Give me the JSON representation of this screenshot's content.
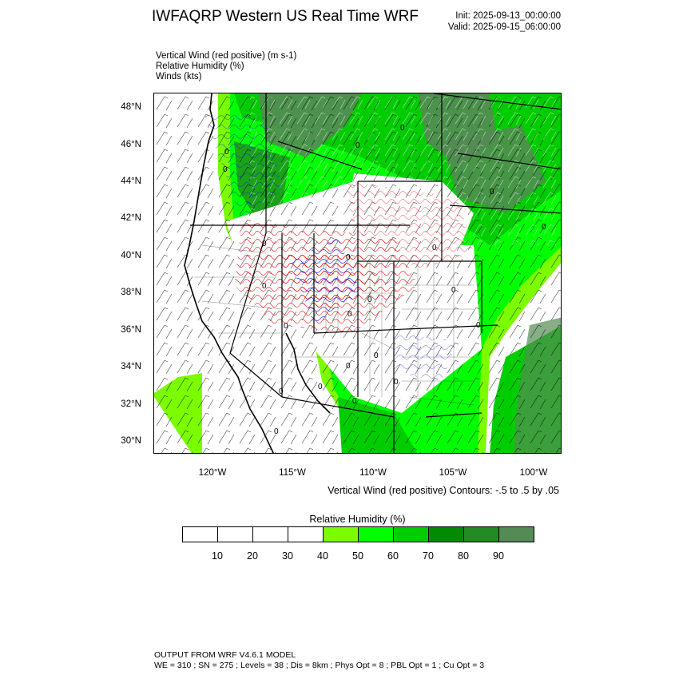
{
  "header": {
    "title": "IWFAQRP Western US Real Time WRF",
    "init": "Init: 2025-09-13_00:00:00",
    "valid": "Valid: 2025-09-15_06:00:00"
  },
  "fields": {
    "line1": "Vertical Wind (red positive)   (m s-1)",
    "line2": "Relative Humidity   (%)",
    "line3": "Winds   (kts)"
  },
  "map": {
    "lat_labels": [
      "48°N",
      "46°N",
      "44°N",
      "42°N",
      "40°N",
      "38°N",
      "36°N",
      "34°N",
      "32°N",
      "30°N"
    ],
    "lon_labels": [
      "120°W",
      "115°W",
      "110°W",
      "105°W",
      "100°W"
    ],
    "contour_note": "Vertical Wind (red positive) Contours: -.5 to .5 by .05",
    "zero_labels": [
      "0",
      "0",
      "0",
      "0",
      "0",
      "0",
      "0",
      "0",
      "0",
      "0",
      "0",
      "0",
      "0",
      "0",
      "0",
      "0",
      "0",
      "0",
      "0",
      "0",
      "0",
      "0"
    ]
  },
  "colorbar": {
    "title": "Relative Humidity   (%)",
    "ticks": [
      "10",
      "20",
      "30",
      "40",
      "50",
      "60",
      "70",
      "80",
      "90"
    ],
    "colors": [
      "#ffffff",
      "#ffffff",
      "#ffffff",
      "#ffffff",
      "#7cfc00",
      "#00ff00",
      "#00cd00",
      "#008b00",
      "#228b22",
      "#548b54"
    ]
  },
  "footer": {
    "line1": "OUTPUT FROM WRF V4.6.1 MODEL",
    "line2": "WE = 310 ; SN = 275 ; Levels = 38 ; Dis = 8km ; Phys Opt = 8 ; PBL Opt = 1 ; Cu Opt = 3"
  }
}
